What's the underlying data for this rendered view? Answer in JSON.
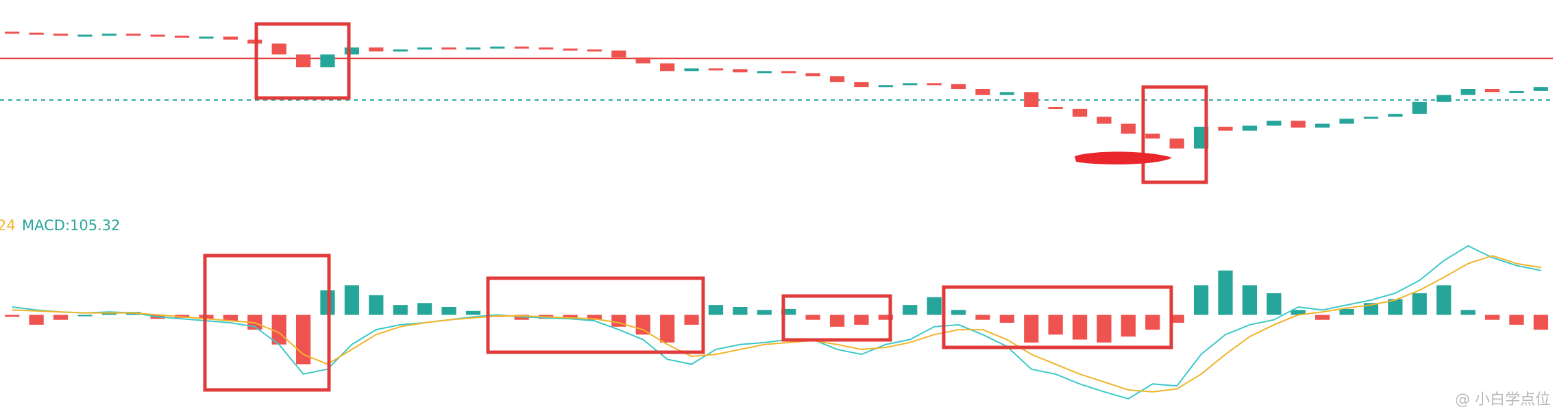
{
  "chart_data": [
    {
      "type": "candlestick",
      "opens": [
        168,
        167,
        166,
        164,
        165,
        166,
        165,
        164,
        163,
        163,
        160,
        156,
        145,
        132,
        145,
        152,
        148,
        150,
        152,
        151,
        152,
        153,
        152,
        151,
        150,
        149,
        142,
        136,
        128,
        131,
        130,
        127,
        128,
        126,
        123,
        117,
        112,
        114,
        116,
        115,
        110,
        104,
        107,
        92,
        90,
        82,
        75,
        65,
        60,
        50,
        72,
        68,
        73,
        78,
        71,
        75,
        80,
        82,
        85,
        97,
        104,
        110,
        107,
        108
      ],
      "closes": [
        167,
        166,
        164,
        165,
        166,
        165,
        164,
        163,
        163,
        160,
        156,
        145,
        132,
        145,
        152,
        148,
        150,
        152,
        151,
        152,
        153,
        152,
        151,
        150,
        149,
        142,
        136,
        128,
        131,
        130,
        127,
        128,
        126,
        123,
        117,
        112,
        114,
        116,
        115,
        110,
        104,
        107,
        92,
        90,
        82,
        75,
        65,
        60,
        50,
        72,
        68,
        73,
        78,
        71,
        75,
        80,
        82,
        85,
        97,
        104,
        110,
        107,
        108,
        112
      ],
      "up_color": "#26a69a",
      "down_color": "#ef5350",
      "ylim": [
        20,
        200
      ],
      "hlines": [
        {
          "value": 141,
          "color": "#e53935",
          "dash": false
        },
        {
          "value": 99,
          "color": "#26a69a",
          "dash": true
        }
      ]
    },
    {
      "type": "macd",
      "legend_texts": [
        {
          "text": "24",
          "color": "#f0b429"
        },
        {
          "text": "MACD:105.32",
          "color": "#26a69a"
        }
      ],
      "histogram": [
        -2,
        -10,
        -5,
        0,
        2,
        3,
        -4,
        -3,
        -4,
        -6,
        -15,
        -30,
        -50,
        25,
        30,
        20,
        10,
        12,
        8,
        4,
        -2,
        -5,
        -4,
        -3,
        -5,
        -12,
        -20,
        -28,
        -10,
        10,
        8,
        5,
        6,
        -5,
        -12,
        -10,
        -5,
        10,
        18,
        5,
        -5,
        -8,
        -28,
        -20,
        -25,
        -28,
        -22,
        -15,
        -8,
        30,
        45,
        30,
        22,
        5,
        -5,
        6,
        12,
        16,
        22,
        30,
        5,
        -5,
        -10,
        -15
      ],
      "up_color": "#26a69a",
      "down_color": "#ef5350",
      "series": [
        {
          "color": "#3cc8c8",
          "values": [
            8,
            5,
            3,
            2,
            3,
            2,
            -2,
            -4,
            -6,
            -8,
            -12,
            -30,
            -60,
            -55,
            -30,
            -15,
            -10,
            -8,
            -5,
            -2,
            0,
            -2,
            -3,
            -4,
            -6,
            -15,
            -25,
            -45,
            -50,
            -35,
            -30,
            -28,
            -25,
            -25,
            -35,
            -40,
            -30,
            -25,
            -12,
            -10,
            -20,
            -32,
            -55,
            -60,
            -70,
            -78,
            -85,
            -70,
            -72,
            -40,
            -20,
            -10,
            -5,
            8,
            5,
            10,
            15,
            22,
            35,
            55,
            70,
            58,
            50,
            45
          ]
        },
        {
          "color": "#f0b429",
          "values": [
            5,
            4,
            3,
            2,
            2,
            2,
            0,
            -2,
            -4,
            -6,
            -8,
            -18,
            -40,
            -50,
            -35,
            -20,
            -12,
            -8,
            -5,
            -3,
            -1,
            -1,
            -2,
            -3,
            -4,
            -8,
            -15,
            -30,
            -42,
            -40,
            -35,
            -30,
            -28,
            -26,
            -30,
            -35,
            -33,
            -28,
            -20,
            -15,
            -15,
            -25,
            -40,
            -50,
            -60,
            -68,
            -76,
            -78,
            -75,
            -60,
            -40,
            -22,
            -10,
            0,
            3,
            7,
            10,
            15,
            25,
            38,
            52,
            60,
            52,
            48
          ]
        }
      ],
      "ylim": [
        -92,
        83
      ]
    }
  ],
  "watermark": "@ 小白学点位"
}
